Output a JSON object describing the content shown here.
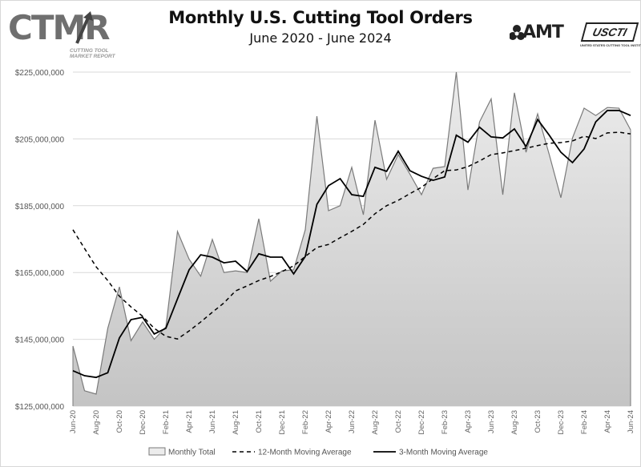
{
  "header": {
    "title": "Monthly U.S. Cutting Tool Orders",
    "subtitle": "June 2020 - June 2024",
    "logo_left": {
      "text": "CTMR",
      "sub1": "CUTTING TOOL",
      "sub2": "MARKET REPORT"
    },
    "logo_right": {
      "amt": "AMT",
      "uscti": "USCTI",
      "uscti_sub": "UNITED STATES CUTTING TOOL INSTITUTE"
    }
  },
  "colors": {
    "fill_top": "#ececec",
    "fill_bottom": "#c4c4c4",
    "monthly_line": "#7a7a7a",
    "avg_line": "#000000",
    "grid": "#d9d9d9"
  },
  "chart_data": {
    "type": "area",
    "title": "Monthly U.S. Cutting Tool Orders",
    "subtitle": "June 2020 - June 2024",
    "ylim": [
      125000000,
      226000000
    ],
    "grid": "horizontal",
    "legend_placement": "bottom",
    "y_ticks": [
      125000000,
      145000000,
      165000000,
      185000000,
      205000000,
      225000000
    ],
    "y_tick_labels": [
      "$125,000,000",
      "$145,000,000",
      "$165,000,000",
      "$185,000,000",
      "$205,000,000",
      "$225,000,000"
    ],
    "x": [
      "Jun-20",
      "Jul-20",
      "Aug-20",
      "Sep-20",
      "Oct-20",
      "Nov-20",
      "Dec-20",
      "Jan-21",
      "Feb-21",
      "Mar-21",
      "Apr-21",
      "May-21",
      "Jun-21",
      "Jul-21",
      "Aug-21",
      "Sep-21",
      "Oct-21",
      "Nov-21",
      "Dec-21",
      "Jan-22",
      "Feb-22",
      "Mar-22",
      "Apr-22",
      "May-22",
      "Jun-22",
      "Jul-22",
      "Aug-22",
      "Sep-22",
      "Oct-22",
      "Nov-22",
      "Dec-22",
      "Jan-23",
      "Feb-23",
      "Mar-23",
      "Apr-23",
      "May-23",
      "Jun-23",
      "Jul-23",
      "Aug-23",
      "Sep-23",
      "Oct-23",
      "Nov-23",
      "Dec-23",
      "Jan-24",
      "Feb-24",
      "Mar-24",
      "Apr-24",
      "May-24",
      "Jun-24"
    ],
    "x_tick_labels": [
      "Jun-20",
      "Aug-20",
      "Oct-20",
      "Dec-20",
      "Feb-21",
      "Apr-21",
      "Jun-21",
      "Aug-21",
      "Oct-21",
      "Dec-21",
      "Feb-22",
      "Apr-22",
      "Jun-22",
      "Aug-22",
      "Oct-22",
      "Dec-22",
      "Feb-23",
      "Apr-23",
      "Jun-23",
      "Aug-23",
      "Oct-23",
      "Dec-23",
      "Feb-24",
      "Apr-24",
      "Jun-24"
    ],
    "series": [
      {
        "name": "Monthly Total",
        "style": "area",
        "values": [
          143000000,
          129600000,
          128600000,
          148300000,
          160700000,
          144600000,
          150200000,
          145000000,
          148700000,
          177300000,
          169000000,
          163900000,
          174900000,
          165000000,
          165500000,
          165000000,
          181100000,
          162400000,
          165500000,
          165800000,
          177800000,
          211800000,
          183500000,
          185000000,
          196500000,
          182300000,
          210600000,
          192900000,
          200300000,
          194500000,
          188300000,
          196200000,
          196700000,
          225000000,
          189700000,
          210100000,
          217000000,
          188300000,
          218800000,
          201000000,
          212500000,
          200300000,
          187400000,
          205300000,
          214200000,
          212000000,
          214400000,
          214200000,
          207700000
        ]
      },
      {
        "name": "12-Month Moving Average",
        "style": "dashed",
        "values": [
          177800000,
          172200000,
          166700000,
          162600000,
          157900000,
          154700000,
          151900000,
          148300000,
          145900000,
          145100000,
          147500000,
          150200000,
          153100000,
          155900000,
          159500000,
          161000000,
          162600000,
          163800000,
          165300000,
          167000000,
          169800000,
          172500000,
          173400000,
          175400000,
          177300000,
          179400000,
          182600000,
          185000000,
          186600000,
          188600000,
          190500000,
          193100000,
          195500000,
          195700000,
          196700000,
          198400000,
          200300000,
          200800000,
          201500000,
          202200000,
          203000000,
          203700000,
          203900000,
          204400000,
          205800000,
          205100000,
          206800000,
          207000000,
          206500000
        ]
      },
      {
        "name": "3-Month Moving Average",
        "style": "solid",
        "values": [
          135600000,
          134100000,
          133600000,
          135000000,
          145400000,
          150900000,
          151600000,
          146600000,
          148300000,
          157100000,
          165800000,
          170300000,
          169600000,
          167900000,
          168400000,
          165300000,
          170600000,
          169600000,
          169600000,
          164600000,
          169800000,
          185400000,
          191000000,
          193100000,
          188300000,
          187800000,
          196500000,
          195300000,
          201300000,
          195500000,
          193800000,
          192600000,
          193600000,
          206100000,
          204000000,
          208500000,
          205600000,
          205300000,
          208000000,
          202700000,
          210800000,
          206100000,
          201000000,
          197900000,
          202000000,
          210100000,
          213500000,
          213500000,
          212000000
        ]
      }
    ]
  }
}
